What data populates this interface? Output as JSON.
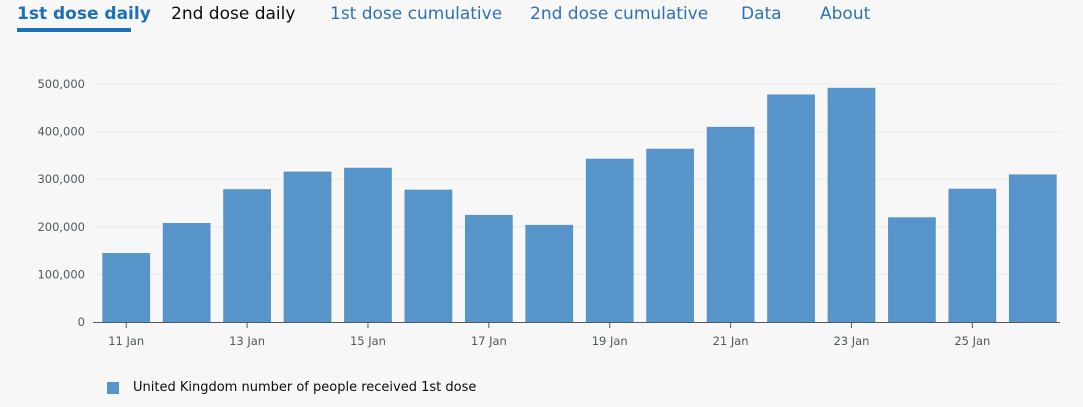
{
  "tabs": [
    {
      "label": "1st dose daily",
      "active": true
    },
    {
      "label": "2nd dose daily",
      "active": false
    },
    {
      "label": "1st dose cumulative",
      "active": false
    },
    {
      "label": "2nd dose cumulative",
      "active": false
    },
    {
      "label": "Data",
      "active": false
    },
    {
      "label": "About",
      "active": false
    }
  ],
  "colors": {
    "bar": "#5694ca",
    "accent": "#1d70b8",
    "grid": "#e8e8e8",
    "axis": "#505a5f"
  },
  "chart_data": {
    "type": "bar",
    "categories": [
      "11 Jan",
      "12 Jan",
      "13 Jan",
      "14 Jan",
      "15 Jan",
      "16 Jan",
      "17 Jan",
      "18 Jan",
      "19 Jan",
      "20 Jan",
      "21 Jan",
      "22 Jan",
      "23 Jan",
      "24 Jan",
      "25 Jan",
      "26 Jan"
    ],
    "x_tick_labels": [
      "11 Jan",
      "",
      "13 Jan",
      "",
      "15 Jan",
      "",
      "17 Jan",
      "",
      "19 Jan",
      "",
      "21 Jan",
      "",
      "23 Jan",
      "",
      "25 Jan",
      ""
    ],
    "series": [
      {
        "name": "United Kingdom number of people received 1st dose",
        "values": [
          145000,
          208000,
          279000,
          316000,
          324000,
          278000,
          225000,
          204000,
          343000,
          364000,
          410000,
          478000,
          492000,
          220000,
          280000,
          310000
        ]
      }
    ],
    "y_ticks": [
      0,
      100000,
      200000,
      300000,
      400000,
      500000
    ],
    "y_tick_labels": [
      "0",
      "100,000",
      "200,000",
      "300,000",
      "400,000",
      "500,000"
    ],
    "ylim": [
      0,
      500000
    ],
    "grid": true,
    "legend_position": "bottom-left"
  }
}
